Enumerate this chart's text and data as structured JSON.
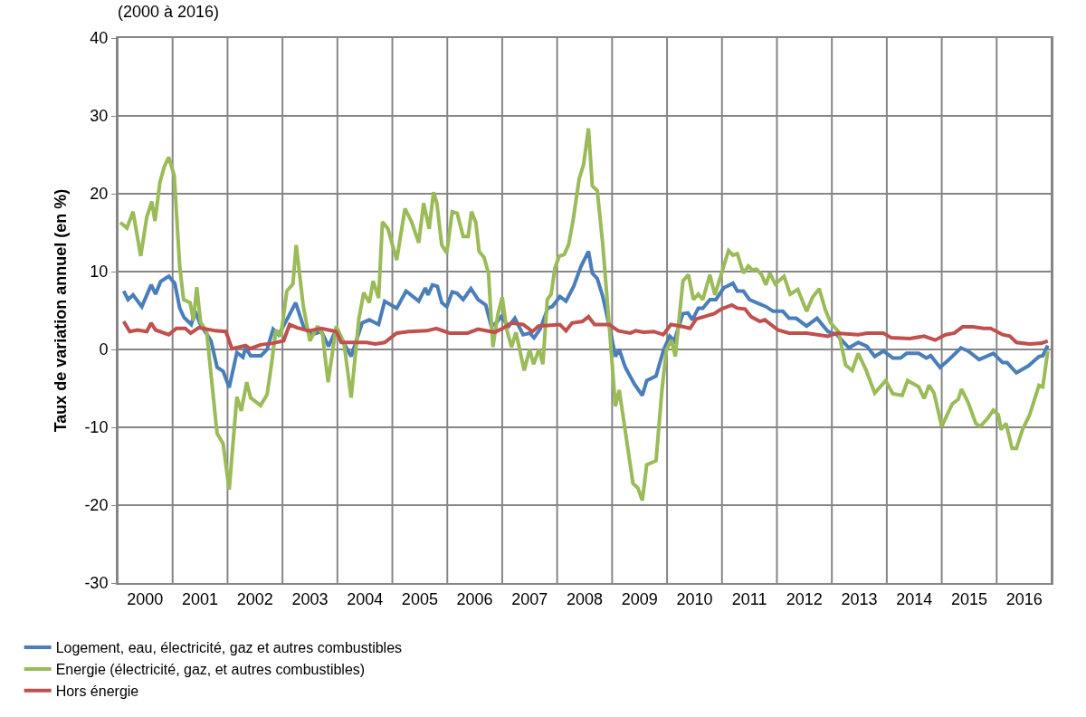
{
  "chart_data": {
    "type": "line",
    "title": "(2000 à 2016)",
    "ylabel": "Taux de variation annuel (en %)",
    "xlim": [
      2000,
      2017
    ],
    "xticks": [
      {
        "value": 2000,
        "label": null
      },
      {
        "value": 2000.5,
        "label": "2000"
      },
      {
        "value": 2001,
        "label": null
      },
      {
        "value": 2001.5,
        "label": "2001"
      },
      {
        "value": 2002,
        "label": null
      },
      {
        "value": 2002.5,
        "label": "2002"
      },
      {
        "value": 2003,
        "label": null
      },
      {
        "value": 2003.5,
        "label": "2003"
      },
      {
        "value": 2004,
        "label": null
      },
      {
        "value": 2004.5,
        "label": "2004"
      },
      {
        "value": 2005,
        "label": null
      },
      {
        "value": 2005.5,
        "label": "2005"
      },
      {
        "value": 2006,
        "label": null
      },
      {
        "value": 2006.5,
        "label": "2006"
      },
      {
        "value": 2007,
        "label": null
      },
      {
        "value": 2007.5,
        "label": "2007"
      },
      {
        "value": 2008,
        "label": null
      },
      {
        "value": 2008.5,
        "label": "2008"
      },
      {
        "value": 2009,
        "label": null
      },
      {
        "value": 2009.5,
        "label": "2009"
      },
      {
        "value": 2010,
        "label": null
      },
      {
        "value": 2010.5,
        "label": "2010"
      },
      {
        "value": 2011,
        "label": null
      },
      {
        "value": 2011.5,
        "label": "2011"
      },
      {
        "value": 2012,
        "label": null
      },
      {
        "value": 2012.5,
        "label": "2012"
      },
      {
        "value": 2013,
        "label": null
      },
      {
        "value": 2013.5,
        "label": "2013"
      },
      {
        "value": 2014,
        "label": null
      },
      {
        "value": 2014.5,
        "label": "2014"
      },
      {
        "value": 2015,
        "label": null
      },
      {
        "value": 2015.5,
        "label": "2015"
      },
      {
        "value": 2016,
        "label": null
      },
      {
        "value": 2016.5,
        "label": "2016"
      },
      {
        "value": 2017,
        "label": null
      }
    ],
    "ylim": [
      -30,
      40
    ],
    "yticks": [
      -30,
      -20,
      -10,
      0,
      10,
      20,
      30,
      40
    ],
    "grid": true,
    "legend": "bottom",
    "marker": "none",
    "line_style": "solid",
    "series": [
      {
        "name": "Logement, eau, électricité, gaz et autres combustibles",
        "color": "#4a7ebb",
        "x": [
          2000.11,
          2000.19,
          2000.28,
          2000.44,
          2000.61,
          2000.69,
          2000.78,
          2000.93,
          2001.04,
          2001.13,
          2001.21,
          2001.34,
          2001.41,
          2001.5,
          2001.7,
          2001.81,
          2001.92,
          2002.03,
          2002.17,
          2002.28,
          2002.33,
          2002.42,
          2002.61,
          2002.72,
          2002.83,
          2002.93,
          2003.1,
          2003.24,
          2003.38,
          2003.52,
          2003.71,
          2003.84,
          2003.98,
          2004.12,
          2004.25,
          2004.45,
          2004.58,
          2004.75,
          2004.86,
          2005.08,
          2005.25,
          2005.48,
          2005.6,
          2005.65,
          2005.73,
          2005.82,
          2005.9,
          2005.99,
          2006.09,
          2006.18,
          2006.29,
          2006.43,
          2006.56,
          2006.7,
          2006.8,
          2006.89,
          2006.98,
          2007.12,
          2007.23,
          2007.38,
          2007.5,
          2007.58,
          2007.69,
          2007.83,
          2007.91,
          2008.05,
          2008.16,
          2008.3,
          2008.43,
          2008.57,
          2008.64,
          2008.73,
          2008.83,
          2008.95,
          2009.06,
          2009.13,
          2009.24,
          2009.41,
          2009.55,
          2009.63,
          2009.8,
          2009.94,
          2010.05,
          2010.13,
          2010.29,
          2010.38,
          2010.46,
          2010.57,
          2010.65,
          2010.78,
          2010.89,
          2011.03,
          2011.2,
          2011.28,
          2011.39,
          2011.5,
          2011.63,
          2011.8,
          2011.93,
          2012.11,
          2012.22,
          2012.35,
          2012.54,
          2012.73,
          2012.93,
          2013.09,
          2013.31,
          2013.48,
          2013.64,
          2013.78,
          2013.94,
          2014.11,
          2014.25,
          2014.36,
          2014.58,
          2014.72,
          2014.8,
          2014.97,
          2015.13,
          2015.35,
          2015.48,
          2015.68,
          2015.94,
          2016.11,
          2016.19,
          2016.36,
          2016.58,
          2016.77,
          2016.84,
          2016.93
        ],
        "values": [
          7.5,
          6.4,
          7,
          5.5,
          8.3,
          7.1,
          8.7,
          9.4,
          8.5,
          5.3,
          4.1,
          3.2,
          4.9,
          3.3,
          1.1,
          -2.3,
          -2.8,
          -4.9,
          -0.4,
          -1,
          0.2,
          -0.8,
          -0.8,
          0,
          2.6,
          1.9,
          4.1,
          6,
          3,
          1.9,
          2.3,
          0.4,
          2.6,
          0.8,
          -0.9,
          3.4,
          3.8,
          3.2,
          6.2,
          5.3,
          7.5,
          6.2,
          7.9,
          7,
          8.3,
          8.1,
          6,
          5.5,
          7.4,
          7.2,
          6.4,
          7.8,
          6.4,
          5.7,
          3,
          3.4,
          4.2,
          3,
          4,
          1.9,
          2.1,
          1.5,
          2.6,
          5.3,
          5.5,
          6.8,
          6.2,
          8.1,
          10.6,
          12.6,
          9.8,
          9.1,
          6.8,
          3,
          -0.9,
          0,
          -2.3,
          -4.5,
          -5.9,
          -4,
          -3.4,
          0,
          1.7,
          1.1,
          4.6,
          4.7,
          3.8,
          5.3,
          5.3,
          6.4,
          6.4,
          7.9,
          8.5,
          7.5,
          7.5,
          6.4,
          6,
          5.5,
          4.9,
          4.9,
          4,
          4,
          3,
          4,
          2.3,
          1.9,
          0.2,
          0.9,
          0.4,
          -0.9,
          -0.2,
          -1.1,
          -1.1,
          -0.5,
          -0.5,
          -1.1,
          -0.8,
          -2.3,
          -1.3,
          0.2,
          -0.2,
          -1.3,
          -0.5,
          -1.7,
          -1.7,
          -3,
          -2.1,
          -0.9,
          -0.8,
          0.5
        ]
      },
      {
        "name": "Energie (électricité, gaz, et autres combustibles)",
        "color": "#9bbb59",
        "x": [
          2000.05,
          2000.17,
          2000.28,
          2000.42,
          2000.53,
          2000.62,
          2000.68,
          2000.77,
          2000.85,
          2000.93,
          2001.03,
          2001.13,
          2001.2,
          2001.32,
          2001.38,
          2001.44,
          2001.51,
          2001.62,
          2001.81,
          2001.92,
          2002.03,
          2002.17,
          2002.25,
          2002.35,
          2002.42,
          2002.6,
          2002.72,
          2002.8,
          2002.88,
          2002.97,
          2003.08,
          2003.19,
          2003.25,
          2003.38,
          2003.5,
          2003.64,
          2003.73,
          2003.83,
          2003.98,
          2004.12,
          2004.25,
          2004.39,
          2004.48,
          2004.58,
          2004.65,
          2004.75,
          2004.82,
          2004.92,
          2005.08,
          2005.23,
          2005.35,
          2005.48,
          2005.57,
          2005.67,
          2005.75,
          2005.81,
          2005.9,
          2005.99,
          2006.09,
          2006.18,
          2006.29,
          2006.38,
          2006.44,
          2006.52,
          2006.58,
          2006.67,
          2006.75,
          2006.83,
          2006.92,
          2007,
          2007.08,
          2007.17,
          2007.25,
          2007.4,
          2007.5,
          2007.57,
          2007.67,
          2007.74,
          2007.82,
          2007.89,
          2007.96,
          2008.04,
          2008.13,
          2008.21,
          2008.29,
          2008.4,
          2008.48,
          2008.57,
          2008.64,
          2008.73,
          2008.83,
          2008.95,
          2009.06,
          2009.13,
          2009.38,
          2009.47,
          2009.55,
          2009.63,
          2009.8,
          2009.91,
          2009.99,
          2010.08,
          2010.15,
          2010.29,
          2010.39,
          2010.48,
          2010.57,
          2010.65,
          2010.78,
          2010.87,
          2011.12,
          2011.2,
          2011.28,
          2011.39,
          2011.48,
          2011.55,
          2011.63,
          2011.72,
          2011.8,
          2011.87,
          2011.97,
          2012.13,
          2012.24,
          2012.38,
          2012.54,
          2012.65,
          2012.77,
          2012.88,
          2012.98,
          2013.12,
          2013.25,
          2013.37,
          2013.48,
          2013.62,
          2013.78,
          2013.98,
          2014.11,
          2014.28,
          2014.38,
          2014.58,
          2014.68,
          2014.77,
          2014.86,
          2015,
          2015.19,
          2015.3,
          2015.36,
          2015.48,
          2015.62,
          2015.7,
          2015.83,
          2015.94,
          2016.03,
          2016.08,
          2016.17,
          2016.28,
          2016.36,
          2016.47,
          2016.6,
          2016.77,
          2016.84,
          2016.93
        ],
        "values": [
          16.3,
          15.6,
          17.7,
          12,
          17,
          19,
          16.5,
          21.5,
          23.5,
          24.7,
          22.3,
          10.6,
          6.4,
          6,
          3.7,
          8,
          3.5,
          2.3,
          -10.8,
          -12.1,
          -18,
          -6.1,
          -7.9,
          -4.2,
          -6.2,
          -7.2,
          -5.8,
          -1.9,
          2.5,
          1.7,
          7.5,
          8.4,
          13.4,
          5.5,
          1.1,
          3,
          1.9,
          -4.2,
          3,
          0.8,
          -6.2,
          3.9,
          7.3,
          6,
          8.8,
          6.6,
          16.4,
          15.5,
          11.5,
          18.1,
          16.4,
          13.7,
          18.8,
          15.5,
          20.2,
          18.8,
          13.4,
          12.4,
          17.7,
          17.5,
          14.5,
          14.5,
          17.7,
          16.3,
          12.6,
          11.8,
          9.8,
          0.3,
          4.5,
          6.7,
          2.6,
          0.3,
          2.2,
          -2.7,
          0,
          -1.9,
          0,
          -1.9,
          6.4,
          7.1,
          10.5,
          12,
          12.2,
          13.5,
          16.6,
          21.9,
          23.7,
          28.4,
          21,
          20.4,
          13.5,
          2.9,
          -7.3,
          -5.2,
          -17.2,
          -17.8,
          -19.4,
          -14.8,
          -14.3,
          -5,
          0,
          1.2,
          -0.9,
          8.8,
          9.6,
          6.4,
          7.1,
          6.4,
          9.6,
          7,
          12.7,
          12.1,
          12.3,
          9.8,
          10.7,
          10.2,
          10.3,
          9.6,
          8.3,
          9.8,
          8.4,
          9.4,
          7.1,
          7.7,
          4.9,
          6.7,
          7.8,
          5.1,
          3.4,
          2.3,
          -2,
          -2.7,
          -0.5,
          -2.6,
          -5.6,
          -4,
          -5.7,
          -5.9,
          -4,
          -4.8,
          -6.3,
          -4.6,
          -5.6,
          -9.9,
          -7,
          -6.4,
          -5.1,
          -6.8,
          -9.5,
          -9.9,
          -8.9,
          -7.8,
          -8.4,
          -10.3,
          -9.5,
          -12.7,
          -12.7,
          -10.3,
          -8.4,
          -4.6,
          -4.8,
          -0.2
        ]
      },
      {
        "name": "Hors énergie",
        "color": "#c0504d",
        "x": [
          2000.11,
          2000.22,
          2000.36,
          2000.53,
          2000.61,
          2000.69,
          2000.93,
          2001.07,
          2001.23,
          2001.33,
          2001.48,
          2001.78,
          2001.97,
          2002.08,
          2002.33,
          2002.41,
          2002.6,
          2002.82,
          2003.02,
          2003.13,
          2003.26,
          2003.48,
          2003.71,
          2003.98,
          2004.07,
          2004.31,
          2004.53,
          2004.69,
          2004.86,
          2005.08,
          2005.3,
          2005.63,
          2005.8,
          2006.04,
          2006.37,
          2006.56,
          2006.86,
          2007.03,
          2007.17,
          2007.38,
          2007.55,
          2007.66,
          2008.05,
          2008.16,
          2008.27,
          2008.46,
          2008.57,
          2008.68,
          2008.95,
          2009.11,
          2009.33,
          2009.43,
          2009.57,
          2009.76,
          2009.93,
          2010.07,
          2010.25,
          2010.42,
          2010.53,
          2010.67,
          2010.86,
          2010.99,
          2011.18,
          2011.28,
          2011.42,
          2011.53,
          2011.69,
          2011.78,
          2012.02,
          2012.22,
          2012.54,
          2012.93,
          2013.09,
          2013.48,
          2013.64,
          2013.94,
          2014.08,
          2014.42,
          2014.68,
          2014.88,
          2015.07,
          2015.23,
          2015.38,
          2015.57,
          2015.76,
          2015.89,
          2016.11,
          2016.24,
          2016.36,
          2016.6,
          2016.82,
          2016.93
        ],
        "values": [
          3.6,
          2.3,
          2.5,
          2.3,
          3.4,
          2.5,
          1.9,
          2.7,
          2.7,
          2.1,
          2.8,
          2.4,
          2.3,
          0.1,
          0.5,
          0.1,
          0.6,
          0.8,
          1.1,
          3.2,
          2.8,
          2.4,
          2.7,
          2.3,
          0.9,
          0.9,
          0.9,
          0.7,
          0.9,
          2.1,
          2.3,
          2.4,
          2.7,
          2.1,
          2.1,
          2.6,
          2.2,
          2.8,
          3.4,
          3.2,
          2.3,
          3,
          3.2,
          2.4,
          3.4,
          3.6,
          4.2,
          3.2,
          3.2,
          2.4,
          2.1,
          2.4,
          2.2,
          2.3,
          1.9,
          3.2,
          3,
          2.7,
          3.9,
          4.2,
          4.6,
          5.2,
          5.7,
          5.3,
          5.2,
          4.2,
          3.6,
          3.8,
          2.5,
          2.1,
          2.1,
          1.7,
          2.1,
          1.9,
          2.1,
          2.1,
          1.5,
          1.4,
          1.7,
          1.2,
          1.9,
          2.1,
          2.9,
          2.9,
          2.7,
          2.7,
          1.9,
          1.7,
          0.9,
          0.7,
          0.8,
          1.1
        ]
      }
    ]
  }
}
